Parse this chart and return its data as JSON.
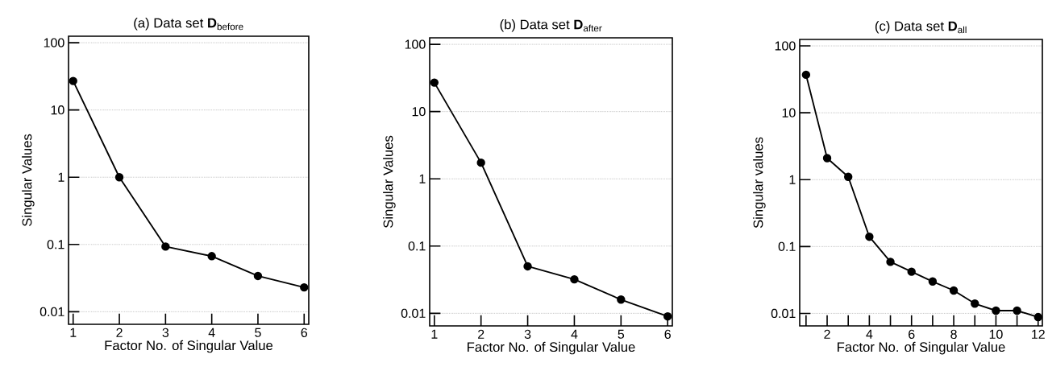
{
  "chart_data": [
    {
      "type": "line",
      "title": "(a) Data set **D**$_{before}$",
      "xlabel": "Factor No. of Singular Value",
      "ylabel": "Singular Values",
      "x": [
        1,
        2,
        3,
        4,
        5,
        6
      ],
      "values": [
        27,
        1,
        0.093,
        0.067,
        0.034,
        0.023
      ],
      "color": "#000000",
      "marker": "circle",
      "line_style": "solid",
      "log": "y",
      "grid": "y",
      "xlim": [
        0.9,
        6.1
      ],
      "xticks": [
        1,
        2,
        3,
        4,
        5,
        6
      ],
      "ylim": [
        0.0065,
        125
      ],
      "yticks": [
        0.01,
        0.1,
        1,
        10,
        100
      ]
    },
    {
      "type": "line",
      "title": "(b) Data set **D**$_{after}$",
      "xlabel": "Factor No. of Singular Value",
      "ylabel": "Singular Values",
      "x": [
        1,
        2,
        3,
        4,
        5,
        6
      ],
      "values": [
        27,
        1.74,
        0.05,
        0.032,
        0.016,
        0.009
      ],
      "color": "#000000",
      "marker": "circle",
      "line_style": "solid",
      "log": "y",
      "grid": "y",
      "xlim": [
        0.9,
        6.1
      ],
      "xticks": [
        1,
        2,
        3,
        4,
        5,
        6
      ],
      "ylim": [
        0.0065,
        125
      ],
      "yticks": [
        0.01,
        0.1,
        1,
        10,
        100
      ]
    },
    {
      "type": "line",
      "title": "(c) Data set **D**$_{all}$",
      "xlabel": "Factor No. of Singular Value",
      "ylabel": "Singular values",
      "x": [
        1,
        2,
        3,
        4,
        5,
        6,
        7,
        8,
        9,
        10,
        11,
        12
      ],
      "values": [
        37,
        2.1,
        1.1,
        0.14,
        0.059,
        0.042,
        0.03,
        0.022,
        0.014,
        0.011,
        0.011,
        0.0088
      ],
      "color": "#000000",
      "marker": "circle",
      "line_style": "solid",
      "log": "y",
      "grid": "y",
      "xlim": [
        0.7,
        12.2
      ],
      "xticks": [
        {
          "value": 1,
          "label": null
        },
        2,
        {
          "value": 3,
          "label": null
        },
        4,
        {
          "value": 5,
          "label": null
        },
        6,
        {
          "value": 7,
          "label": null
        },
        8,
        {
          "value": 9,
          "label": null
        },
        10,
        {
          "value": 11,
          "label": null
        },
        12
      ],
      "ylim": [
        0.0065,
        125
      ],
      "yticks": [
        0.01,
        0.1,
        1,
        10,
        100
      ]
    }
  ]
}
